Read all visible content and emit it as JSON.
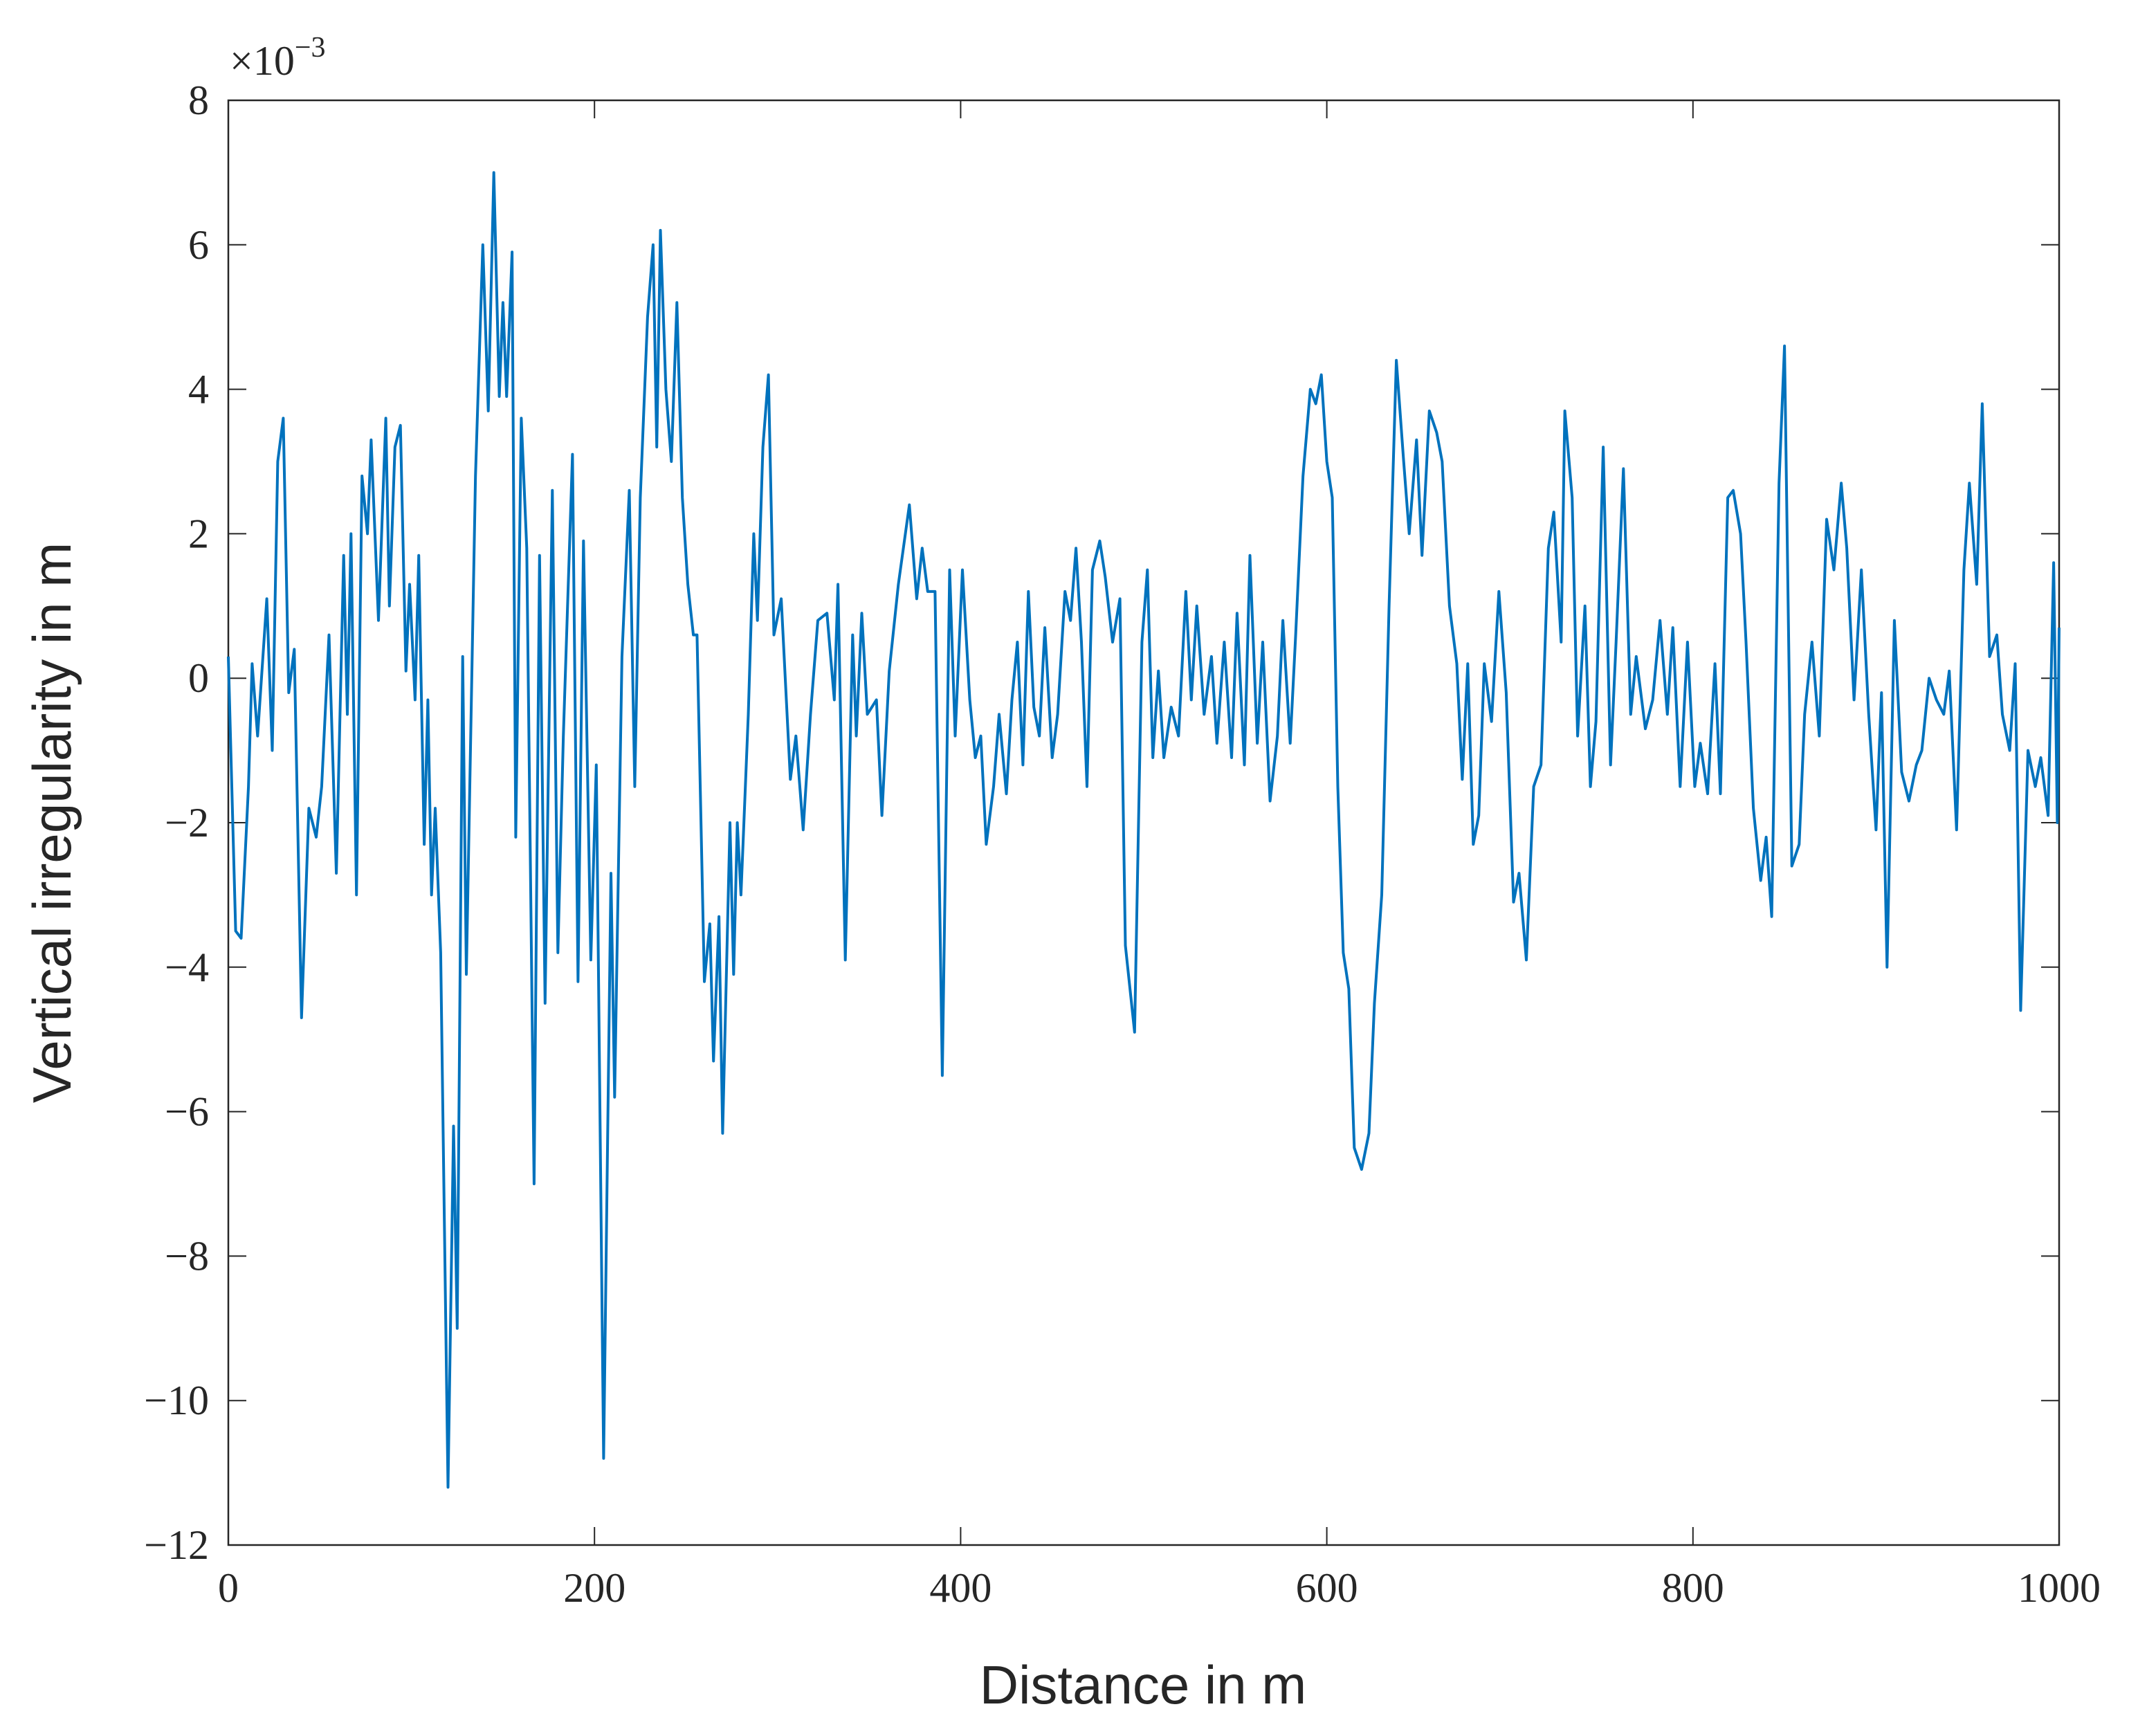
{
  "chart_data": {
    "type": "line",
    "xlabel": "Distance in m",
    "ylabel": "Vertical irregularity in m",
    "y_multiplier": {
      "base": "×10",
      "exponent": "−3"
    },
    "color": "#0072bd",
    "xlim": [
      0,
      1000
    ],
    "xticks": [
      0,
      200,
      400,
      600,
      800,
      1000
    ],
    "ylim": [
      -12,
      8
    ],
    "yticks": [
      {
        "value": -12,
        "label": "−12"
      },
      {
        "value": -10,
        "label": "−10"
      },
      {
        "value": -8,
        "label": "−8"
      },
      {
        "value": -6,
        "label": "−6"
      },
      {
        "value": -4,
        "label": "−4"
      },
      {
        "value": -2,
        "label": "−2"
      },
      0,
      2,
      4,
      6,
      8
    ],
    "x": [
      0,
      4,
      7,
      11,
      13,
      16,
      21,
      24,
      27,
      30,
      33,
      36,
      40,
      44,
      48,
      51,
      55,
      59,
      63,
      65,
      67,
      70,
      73,
      76,
      78,
      82,
      86,
      88,
      91,
      94,
      97,
      99,
      102,
      104,
      107,
      109,
      111,
      113,
      116,
      120,
      123,
      125,
      128,
      130,
      135,
      139,
      142,
      145,
      148,
      150,
      152,
      155,
      157,
      160,
      163,
      167,
      170,
      173,
      177,
      180,
      183,
      188,
      191,
      194,
      198,
      201,
      205,
      209,
      211,
      215,
      219,
      222,
      225,
      229,
      232,
      234,
      236,
      239,
      242,
      245,
      248,
      251,
      254,
      256,
      260,
      263,
      265,
      268,
      270,
      274,
      276,
      278,
      280,
      284,
      287,
      289,
      292,
      295,
      298,
      302,
      307,
      310,
      314,
      318,
      322,
      327,
      331,
      333,
      337,
      341,
      343,
      346,
      349,
      354,
      357,
      361,
      366,
      372,
      376,
      379,
      382,
      386,
      390,
      394,
      397,
      401,
      405,
      408,
      411,
      414,
      418,
      421,
      425,
      428,
      431,
      434,
      437,
      440,
      443,
      446,
      450,
      453,
      457,
      460,
      463,
      466,
      469,
      472,
      476,
      479,
      483,
      487,
      490,
      495,
      499,
      502,
      505,
      508,
      511,
      515,
      519,
      523,
      526,
      529,
      533,
      537,
      540,
      544,
      548,
      551,
      555,
      558,
      562,
      565,
      569,
      573,
      576,
      580,
      583,
      587,
      591,
      594,
      597,
      600,
      603,
      606,
      609,
      612,
      615,
      619,
      623,
      626,
      630,
      634,
      638,
      642,
      645,
      649,
      652,
      656,
      660,
      663,
      667,
      671,
      674,
      677,
      680,
      683,
      686,
      690,
      694,
      698,
      702,
      705,
      709,
      713,
      717,
      721,
      724,
      728,
      730,
      734,
      737,
      741,
      744,
      747,
      751,
      755,
      758,
      762,
      766,
      769,
      774,
      778,
      782,
      786,
      789,
      793,
      797,
      801,
      804,
      808,
      812,
      815,
      819,
      822,
      826,
      829,
      833,
      837,
      840,
      843,
      847,
      850,
      854,
      858,
      861,
      865,
      869,
      873,
      877,
      881,
      884,
      888,
      892,
      896,
      900,
      903,
      906,
      910,
      914,
      918,
      922,
      925,
      929,
      933,
      937,
      940,
      944,
      948,
      951,
      955,
      958,
      962,
      966,
      969,
      973,
      976,
      979,
      983,
      987,
      990,
      994,
      997,
      999,
      1000
    ],
    "values": [
      0.3,
      -3.5,
      -3.6,
      -1.5,
      0.2,
      -0.8,
      1.1,
      -1,
      3.0,
      3.6,
      -0.2,
      0.4,
      -4.7,
      -1.8,
      -2.2,
      -1.5,
      0.6,
      -2.7,
      1.7,
      -0.5,
      2.0,
      -3.0,
      2.8,
      2.0,
      3.3,
      0.8,
      3.6,
      1.0,
      3.2,
      3.5,
      0.1,
      1.3,
      -0.3,
      1.7,
      -2.3,
      -0.3,
      -3.0,
      -1.8,
      -3.8,
      -11.2,
      -6.2,
      -9.0,
      0.3,
      -4.1,
      2.8,
      6.0,
      3.7,
      7.0,
      3.9,
      5.2,
      3.9,
      5.9,
      -2.2,
      3.6,
      1.8,
      -7.0,
      1.7,
      -4.5,
      2.6,
      -3.8,
      -0.8,
      3.1,
      -4.2,
      1.9,
      -3.9,
      -1.2,
      -10.8,
      -2.7,
      -5.8,
      0.3,
      2.6,
      -1.5,
      2.5,
      5.0,
      6.0,
      3.2,
      6.2,
      4.0,
      3.0,
      5.2,
      2.5,
      1.3,
      0.6,
      0.6,
      -4.2,
      -3.4,
      -5.3,
      -3.3,
      -6.3,
      -2.0,
      -4.1,
      -2.0,
      -3.0,
      -0.5,
      2.0,
      0.8,
      3.2,
      4.2,
      0.6,
      1.1,
      -1.4,
      -0.8,
      -2.1,
      -0.5,
      0.8,
      0.9,
      -0.3,
      1.3,
      -3.9,
      0.6,
      -0.8,
      0.9,
      -0.5,
      -0.3,
      -1.9,
      0.1,
      1.3,
      2.4,
      1.1,
      1.8,
      1.2,
      1.2,
      -5.5,
      1.5,
      -0.8,
      1.5,
      -0.3,
      -1.1,
      -0.8,
      -2.3,
      -1.5,
      -0.5,
      -1.6,
      -0.3,
      0.5,
      -1.2,
      1.2,
      -0.4,
      -0.8,
      0.7,
      -1.1,
      -0.5,
      1.2,
      0.8,
      1.8,
      0.5,
      -1.5,
      1.5,
      1.9,
      1.4,
      0.5,
      1.1,
      -3.7,
      -4.9,
      0.5,
      1.5,
      -1.1,
      0.1,
      -1.1,
      -0.4,
      -0.8,
      1.2,
      -0.3,
      1.0,
      -0.5,
      0.3,
      -0.9,
      0.5,
      -1.1,
      0.9,
      -1.2,
      1.7,
      -0.9,
      0.5,
      -1.7,
      -0.8,
      0.8,
      -0.9,
      0.6,
      2.8,
      4.0,
      3.8,
      4.2,
      3.0,
      2.5,
      -1.5,
      -3.8,
      -4.3,
      -6.5,
      -6.8,
      -6.3,
      -4.5,
      -3.0,
      1.0,
      4.4,
      3.0,
      2.0,
      3.3,
      1.7,
      3.7,
      3.4,
      3.0,
      1.0,
      0.2,
      -1.4,
      0.2,
      -2.3,
      -1.9,
      0.2,
      -0.6,
      1.2,
      -0.2,
      -3.1,
      -2.7,
      -3.9,
      -1.5,
      -1.2,
      1.8,
      2.3,
      0.5,
      3.7,
      2.5,
      -0.8,
      1.0,
      -1.5,
      -0.6,
      3.2,
      -1.2,
      0.5,
      2.9,
      -0.5,
      0.3,
      -0.7,
      -0.3,
      0.8,
      -0.5,
      0.7,
      -1.5,
      0.5,
      -1.5,
      -0.9,
      -1.6,
      0.2,
      -1.6,
      2.5,
      2.6,
      2.0,
      0.5,
      -1.8,
      -2.8,
      -2.2,
      -3.3,
      2.7,
      4.6,
      -2.6,
      -2.3,
      -0.5,
      0.5,
      -0.8,
      2.2,
      1.5,
      2.7,
      1.8,
      -0.3,
      1.5,
      -0.5,
      -2.1,
      -0.2,
      -4.0,
      0.8,
      -1.3,
      -1.7,
      -1.2,
      -1.0,
      0.0,
      -0.3,
      -0.5,
      0.1,
      -2.1,
      1.5,
      2.7,
      1.3,
      3.8,
      0.3,
      0.6,
      -0.5,
      -1.0,
      0.2,
      -4.6,
      -1.0,
      -1.5,
      -1.1,
      -1.9,
      1.6,
      -2.0,
      0.7
    ]
  }
}
